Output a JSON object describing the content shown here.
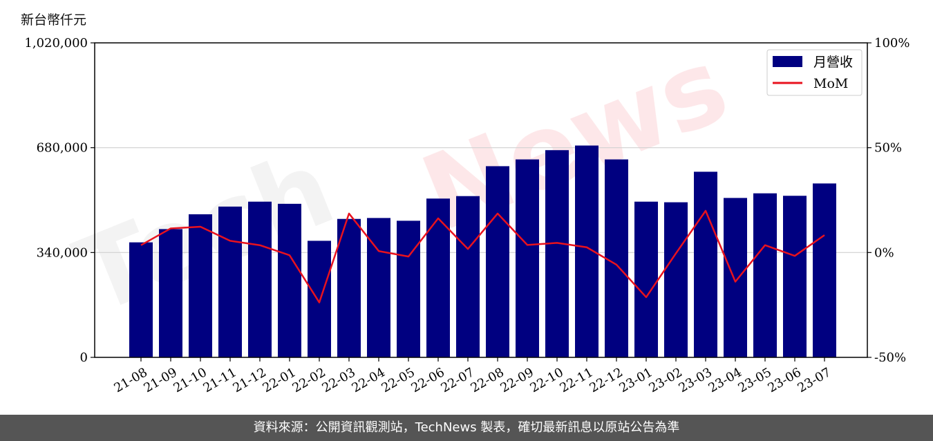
{
  "unit_label": "新台幣仟元",
  "footer": "資料來源：公開資訊觀測站，TechNews 製表，確切最新訊息以原站公告為準",
  "watermark": {
    "part1": "Tech",
    "part2": "News"
  },
  "colors": {
    "bar": "#000080",
    "line": "#e8121e",
    "grid": "#d0d0d0",
    "footer_bg": "#555555"
  },
  "chart_data": {
    "type": "bar+line",
    "categories": [
      "21-08",
      "21-09",
      "21-10",
      "21-11",
      "21-12",
      "22-01",
      "22-02",
      "22-03",
      "22-04",
      "22-05",
      "22-06",
      "22-07",
      "22-08",
      "22-09",
      "22-10",
      "22-11",
      "22-12",
      "23-01",
      "23-02",
      "23-03",
      "23-04",
      "23-05",
      "23-06",
      "23-07"
    ],
    "series": [
      {
        "name": "月營收",
        "type": "bar",
        "axis": "left",
        "values": [
          373000,
          416000,
          464000,
          489000,
          505000,
          498000,
          378000,
          449000,
          452000,
          443000,
          515000,
          523000,
          620000,
          642000,
          672000,
          687000,
          642000,
          505000,
          503000,
          602000,
          517000,
          532000,
          524000,
          564000
        ]
      },
      {
        "name": "MoM",
        "type": "line",
        "axis": "right",
        "values": [
          3.5,
          11.5,
          12.3,
          5.6,
          3.5,
          -1.3,
          -23.8,
          18.6,
          0.7,
          -1.9,
          16.3,
          1.7,
          18.6,
          3.6,
          4.6,
          2.5,
          -5.8,
          -21.3,
          -0.4,
          19.9,
          -13.9,
          3.5,
          -1.6,
          8.3
        ]
      }
    ],
    "y_left": {
      "min": 0,
      "max": 1020000,
      "ticks": [
        "0",
        "340,000",
        "680,000",
        "1,020,000"
      ],
      "tick_values": [
        0,
        340000,
        680000,
        1020000
      ]
    },
    "y_right": {
      "min": -50,
      "max": 100,
      "ticks": [
        "-50%",
        "0%",
        "50%",
        "100%"
      ],
      "tick_values": [
        -50,
        0,
        50,
        100
      ]
    },
    "grid": "horizontal",
    "legend": {
      "position": "top-right",
      "items": [
        "月營收",
        "MoM"
      ]
    }
  }
}
